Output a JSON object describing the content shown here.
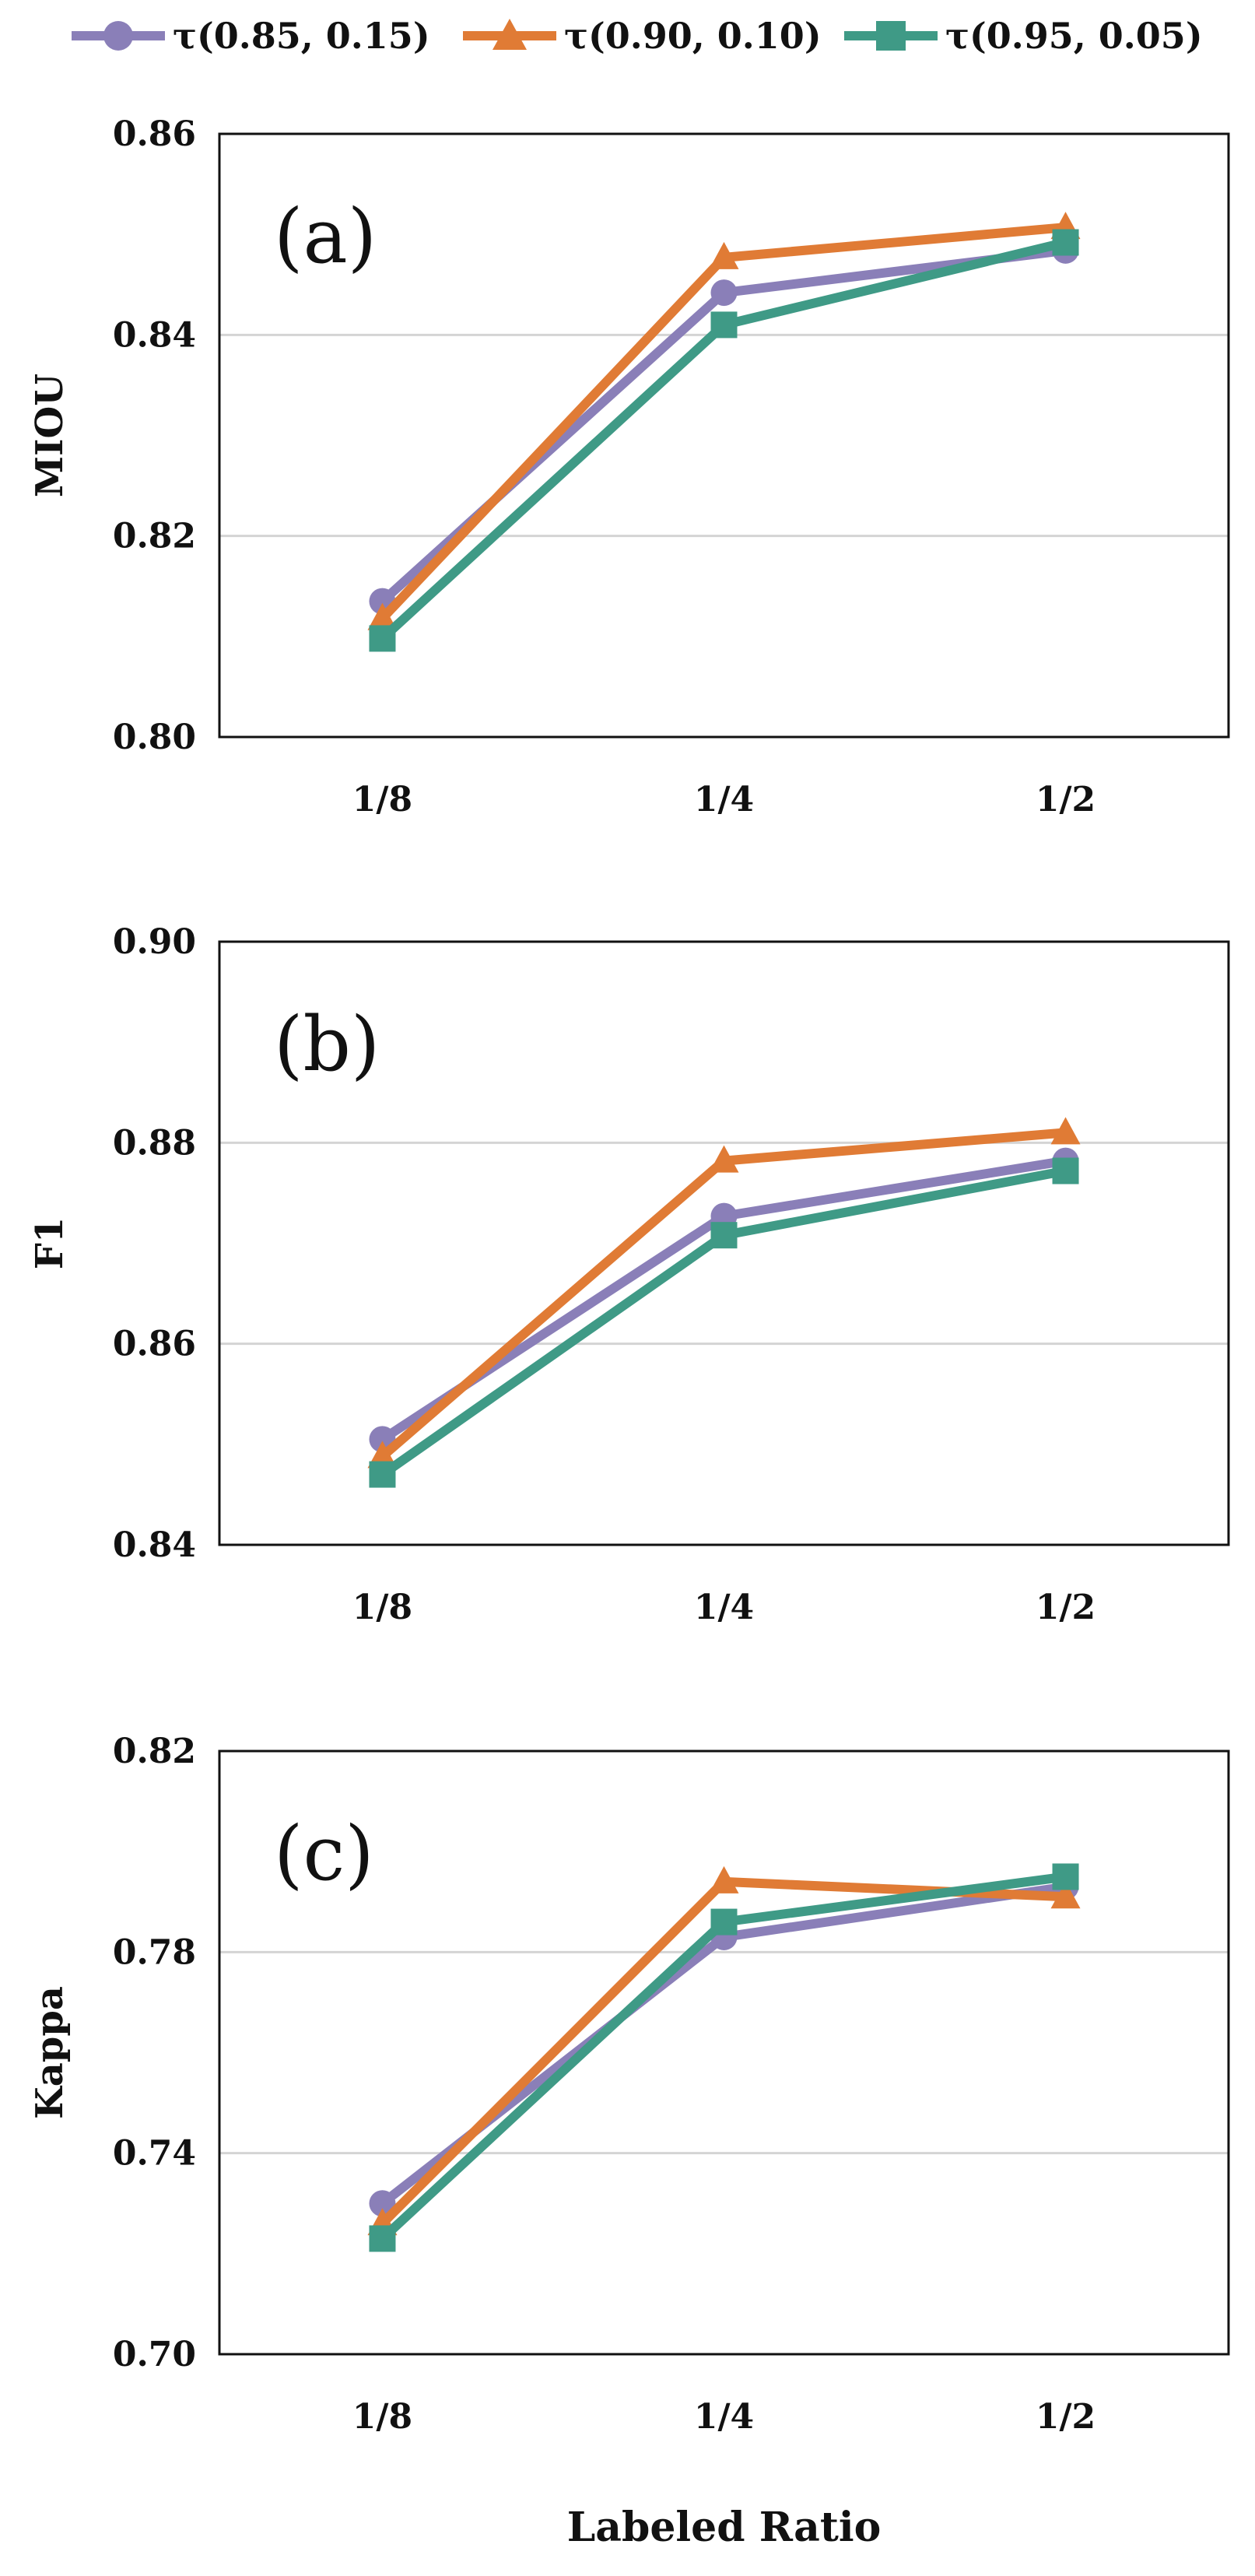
{
  "legend": [
    {
      "label": "τ(0.85, 0.15)",
      "color": "#8a7fb8",
      "marker": "circle"
    },
    {
      "label": "τ(0.90, 0.10)",
      "color": "#e07b35",
      "marker": "triangle"
    },
    {
      "label": "τ(0.95, 0.05)",
      "color": "#3f9a86",
      "marker": "square"
    }
  ],
  "chart_data": [
    {
      "type": "line",
      "panel_label": "(a)",
      "ylabel": "MIOU",
      "xlabel": "",
      "categories": [
        "1/8",
        "1/4",
        "1/2"
      ],
      "ylim": [
        0.8,
        0.86
      ],
      "yticks": [
        "0.86",
        "0.84",
        "0.82",
        "0.80"
      ],
      "ytick_values": [
        0.86,
        0.84,
        0.82,
        0.8
      ],
      "grid": true,
      "series": [
        {
          "name": "τ(0.85, 0.15)",
          "values": [
            0.8135,
            0.8442,
            0.8484
          ]
        },
        {
          "name": "τ(0.90, 0.10)",
          "values": [
            0.8118,
            0.8477,
            0.8507
          ]
        },
        {
          "name": "τ(0.95, 0.05)",
          "values": [
            0.8098,
            0.841,
            0.8492
          ]
        }
      ]
    },
    {
      "type": "line",
      "panel_label": "(b)",
      "ylabel": "F1",
      "xlabel": "",
      "categories": [
        "1/8",
        "1/4",
        "1/2"
      ],
      "ylim": [
        0.84,
        0.9
      ],
      "yticks": [
        "0.90",
        "0.88",
        "0.86",
        "0.84"
      ],
      "ytick_values": [
        0.9,
        0.88,
        0.86,
        0.84
      ],
      "grid": true,
      "series": [
        {
          "name": "τ(0.85, 0.15)",
          "values": [
            0.8505,
            0.8727,
            0.8782
          ]
        },
        {
          "name": "τ(0.90, 0.10)",
          "values": [
            0.8488,
            0.8782,
            0.881
          ]
        },
        {
          "name": "τ(0.95, 0.05)",
          "values": [
            0.847,
            0.8708,
            0.8772
          ]
        }
      ]
    },
    {
      "type": "line",
      "panel_label": "(c)",
      "ylabel": "Kappa",
      "xlabel": "Labeled Ratio",
      "categories": [
        "1/8",
        "1/4",
        "1/2"
      ],
      "ylim": [
        0.7,
        0.82
      ],
      "yticks": [
        "0.82",
        "0.78",
        "0.74",
        "0.70"
      ],
      "ytick_values": [
        0.82,
        0.78,
        0.74,
        0.7
      ],
      "grid": true,
      "series": [
        {
          "name": "τ(0.85, 0.15)",
          "values": [
            0.73,
            0.783,
            0.793
          ]
        },
        {
          "name": "τ(0.90, 0.10)",
          "values": [
            0.726,
            0.794,
            0.791
          ]
        },
        {
          "name": "τ(0.95, 0.05)",
          "values": [
            0.723,
            0.786,
            0.795
          ]
        }
      ]
    }
  ]
}
